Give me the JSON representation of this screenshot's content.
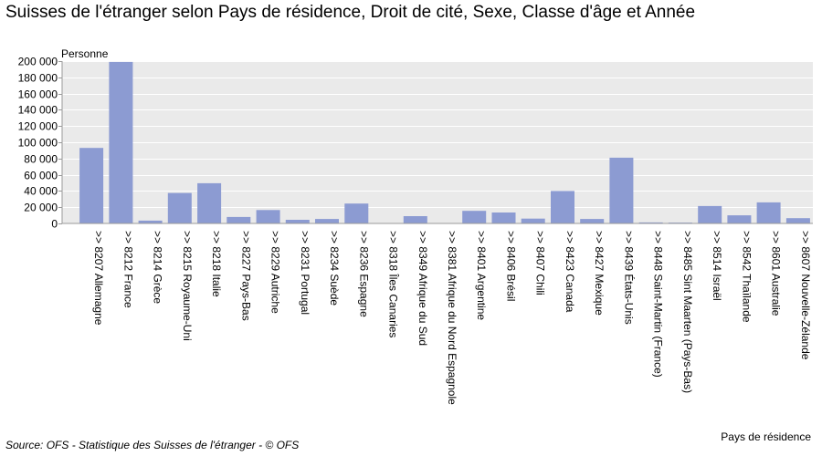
{
  "title": "Suisses de l'étranger selon Pays de résidence, Droit de cité, Sexe, Classe d'âge et Année",
  "source": "Source: OFS - Statistique des Suisses de l'étranger - © OFS",
  "colors": {
    "bar": "#8c9bd2",
    "plot_bg": "#eaeaea",
    "grid": "#ffffff",
    "frame": "#999999"
  },
  "chart_data": {
    "type": "bar",
    "title": "Suisses de l'étranger selon Pays de résidence, Droit de cité, Sexe, Classe d'âge et Année",
    "xlabel": "Pays de résidence",
    "ylabel": "Personne",
    "ylim": [
      0,
      200000
    ],
    "yticks": [
      0,
      20000,
      40000,
      60000,
      80000,
      100000,
      120000,
      140000,
      160000,
      180000,
      200000
    ],
    "ytick_labels": [
      "0",
      "20 000",
      "40 000",
      "60 000",
      "80 000",
      "100 000",
      "120 000",
      "140 000",
      "160 000",
      "180 000",
      "200 000"
    ],
    "grid": true,
    "categories": [
      ">> 8207 Allemagne",
      ">> 8212 France",
      ">> 8214 Grèce",
      ">> 8215 Royaume-Uni",
      ">> 8218 Italie",
      ">> 8227 Pays-Bas",
      ">> 8229 Autriche",
      ">> 8231 Portugal",
      ">> 8234 Suède",
      ">> 8236 Espagne",
      ">> 8318 Îles Canaries",
      ">> 8349 Afrique du Sud",
      ">> 8381 Afrique du Nord Espagnole",
      ">> 8401 Argentine",
      ">> 8406 Brésil",
      ">> 8407 Chili",
      ">> 8423 Canada",
      ">> 8427 Mexique",
      ">> 8439 États-Unis",
      ">> 8448 Saint-Martin (France)",
      ">> 8485 Sint Maarten (Pays-Bas)",
      ">> 8514 Israël",
      ">> 8542 Thaïlande",
      ">> 8601 Australie",
      ">> 8607 Nouvelle-Zélande"
    ],
    "values": [
      93000,
      199000,
      3500,
      37500,
      49500,
      8000,
      16500,
      4500,
      5500,
      24500,
      500,
      9000,
      300,
      15500,
      13500,
      6000,
      40000,
      5500,
      81000,
      1200,
      1000,
      21500,
      10000,
      26000,
      6500
    ]
  }
}
